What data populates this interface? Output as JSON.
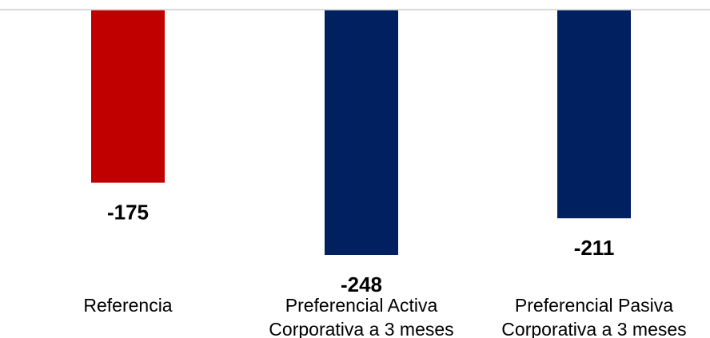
{
  "chart_data": {
    "type": "bar",
    "categories": [
      [
        "Referencia"
      ],
      [
        "Preferencial Activa",
        "Corporativa a 3 meses"
      ],
      [
        "Preferencial Pasiva",
        "Corporativa a 3 meses"
      ]
    ],
    "values": [
      -175,
      -248,
      -211
    ],
    "value_labels": [
      "-175",
      "-248",
      "-211"
    ],
    "colors": [
      "#C00000",
      "#002060",
      "#002060"
    ],
    "ylim": [
      -248,
      0
    ],
    "grid": false,
    "baseline_color": "#D9D9D9"
  }
}
